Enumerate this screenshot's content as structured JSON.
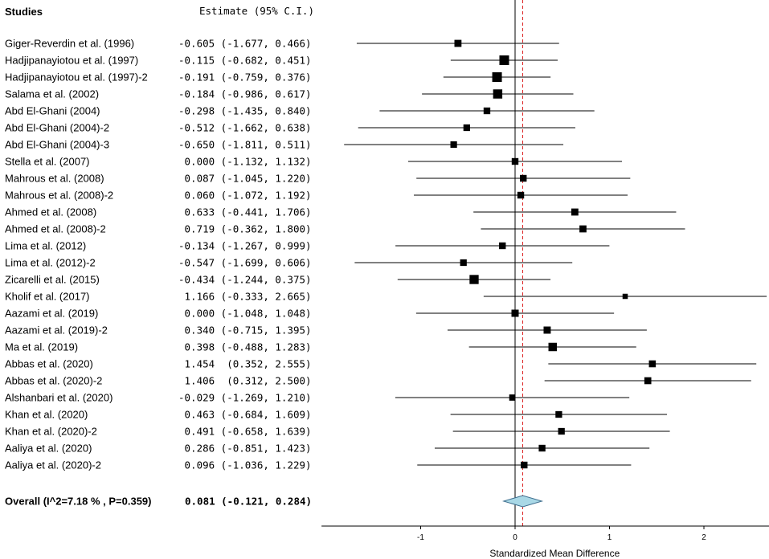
{
  "chart_data": {
    "type": "forest",
    "column_headers": {
      "studies": "Studies",
      "estimate": "Estimate (95% C.I.)"
    },
    "studies": [
      {
        "name": "Giger-Reverdin et al. (1996)",
        "estimate": -0.605,
        "lower": -1.677,
        "upper": 0.466,
        "text": "-0.605 (-1.677, 0.466)"
      },
      {
        "name": "Hadjipanayiotou  et al. (1997)",
        "estimate": -0.115,
        "lower": -0.682,
        "upper": 0.451,
        "text": "-0.115 (-0.682, 0.451)"
      },
      {
        "name": "Hadjipanayiotou  et al. (1997)-2",
        "estimate": -0.191,
        "lower": -0.759,
        "upper": 0.376,
        "text": "-0.191 (-0.759, 0.376)"
      },
      {
        "name": "Salama et al. (2002)",
        "estimate": -0.184,
        "lower": -0.986,
        "upper": 0.617,
        "text": "-0.184 (-0.986, 0.617)"
      },
      {
        "name": "Abd El-Ghani (2004)",
        "estimate": -0.298,
        "lower": -1.435,
        "upper": 0.84,
        "text": "-0.298 (-1.435, 0.840)"
      },
      {
        "name": "Abd El-Ghani (2004)-2",
        "estimate": -0.512,
        "lower": -1.662,
        "upper": 0.638,
        "text": "-0.512 (-1.662, 0.638)"
      },
      {
        "name": "Abd El-Ghani (2004)-3",
        "estimate": -0.65,
        "lower": -1.811,
        "upper": 0.511,
        "text": "-0.650 (-1.811, 0.511)"
      },
      {
        "name": "Stella et al. (2007)",
        "estimate": 0.0,
        "lower": -1.132,
        "upper": 1.132,
        "text": " 0.000 (-1.132, 1.132)"
      },
      {
        "name": "Mahrous et al. (2008)",
        "estimate": 0.087,
        "lower": -1.045,
        "upper": 1.22,
        "text": " 0.087 (-1.045, 1.220)"
      },
      {
        "name": "Mahrous et al. (2008)-2",
        "estimate": 0.06,
        "lower": -1.072,
        "upper": 1.192,
        "text": " 0.060 (-1.072, 1.192)"
      },
      {
        "name": "Ahmed et al. (2008)",
        "estimate": 0.633,
        "lower": -0.441,
        "upper": 1.706,
        "text": " 0.633 (-0.441, 1.706)"
      },
      {
        "name": "Ahmed et al. (2008)-2",
        "estimate": 0.719,
        "lower": -0.362,
        "upper": 1.8,
        "text": " 0.719 (-0.362, 1.800)"
      },
      {
        "name": "Lima et al. (2012)",
        "estimate": -0.134,
        "lower": -1.267,
        "upper": 0.999,
        "text": "-0.134 (-1.267, 0.999)"
      },
      {
        "name": "Lima et al. (2012)-2",
        "estimate": -0.547,
        "lower": -1.699,
        "upper": 0.606,
        "text": "-0.547 (-1.699, 0.606)"
      },
      {
        "name": "Zicarelli et al. (2015)",
        "estimate": -0.434,
        "lower": -1.244,
        "upper": 0.375,
        "text": "-0.434 (-1.244, 0.375)"
      },
      {
        "name": "Kholif et al. (2017)",
        "estimate": 1.166,
        "lower": -0.333,
        "upper": 2.665,
        "text": " 1.166 (-0.333, 2.665)"
      },
      {
        "name": "Aazami et al. (2019)",
        "estimate": 0.0,
        "lower": -1.048,
        "upper": 1.048,
        "text": " 0.000 (-1.048, 1.048)"
      },
      {
        "name": "Aazami et al. (2019)-2",
        "estimate": 0.34,
        "lower": -0.715,
        "upper": 1.395,
        "text": " 0.340 (-0.715, 1.395)"
      },
      {
        "name": "Ma et al. (2019)",
        "estimate": 0.398,
        "lower": -0.488,
        "upper": 1.283,
        "text": " 0.398 (-0.488, 1.283)"
      },
      {
        "name": "Abbas et al. (2020)",
        "estimate": 1.454,
        "lower": 0.352,
        "upper": 2.555,
        "text": " 1.454  (0.352, 2.555)"
      },
      {
        "name": "Abbas et al. (2020)-2",
        "estimate": 1.406,
        "lower": 0.312,
        "upper": 2.5,
        "text": " 1.406  (0.312, 2.500)"
      },
      {
        "name": "Alshanbari et al. (2020)",
        "estimate": -0.029,
        "lower": -1.269,
        "upper": 1.21,
        "text": "-0.029 (-1.269, 1.210)"
      },
      {
        "name": "Khan et al. (2020)",
        "estimate": 0.463,
        "lower": -0.684,
        "upper": 1.609,
        "text": " 0.463 (-0.684, 1.609)"
      },
      {
        "name": "Khan et al. (2020)-2",
        "estimate": 0.491,
        "lower": -0.658,
        "upper": 1.639,
        "text": " 0.491 (-0.658, 1.639)"
      },
      {
        "name": "Aaliya et al. (2020)",
        "estimate": 0.286,
        "lower": -0.851,
        "upper": 1.423,
        "text": " 0.286 (-0.851, 1.423)"
      },
      {
        "name": "Aaliya et al. (2020)-2",
        "estimate": 0.096,
        "lower": -1.036,
        "upper": 1.229,
        "text": " 0.096 (-1.036, 1.229)"
      }
    ],
    "overall": {
      "label": "Overall (I^2=7.18 % , P=0.359)",
      "estimate": 0.081,
      "lower": -0.121,
      "upper": 0.284,
      "text": "0.081 (-0.121, 0.284)"
    },
    "xlabel": "Standardized Mean Difference",
    "xticks": [
      -1,
      0,
      1,
      2
    ],
    "xlim": [
      -2.05,
      2.72
    ],
    "null_line": 0,
    "colors": {
      "marker": "#000000",
      "ci_line": "#000000",
      "overall_line": "#dd2222",
      "diamond_fill": "#a9d8e6",
      "diamond_stroke": "#3f6f8f"
    }
  }
}
